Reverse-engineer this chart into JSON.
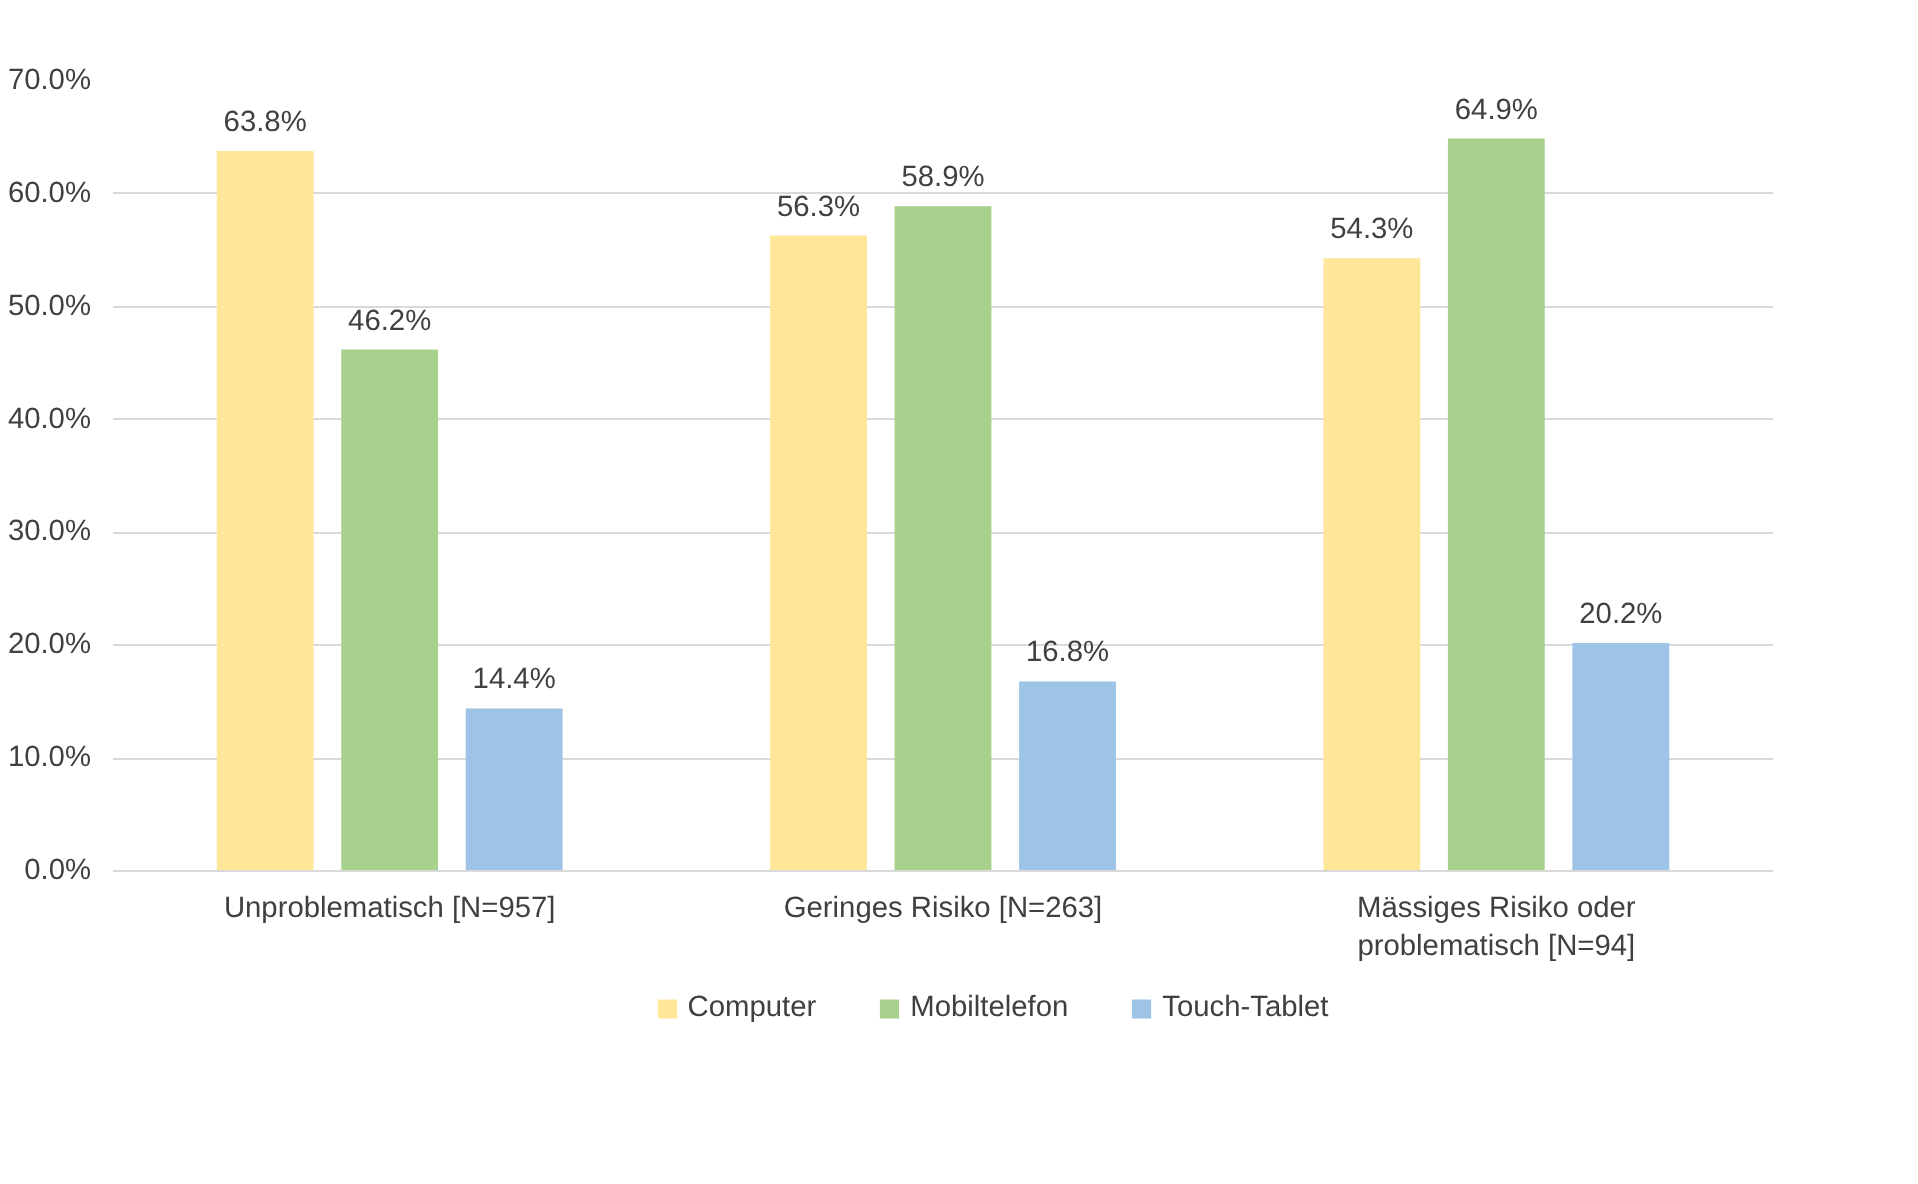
{
  "chart_data": {
    "type": "bar",
    "categories": [
      "Unproblematisch [N=957]",
      "Geringes Risiko [N=263]",
      "Mässiges Risiko oder problematisch [N=94]"
    ],
    "series": [
      {
        "name": "Computer",
        "color": "#ffe699",
        "values": [
          63.8,
          56.3,
          54.3
        ]
      },
      {
        "name": "Mobiltelefon",
        "color": "#a9d18e",
        "values": [
          46.2,
          58.9,
          64.9
        ]
      },
      {
        "name": "Touch-Tablet",
        "color": "#9dc3e6",
        "values": [
          14.4,
          16.8,
          20.2
        ]
      }
    ],
    "ylim": [
      0,
      70
    ],
    "yticks": [
      {
        "value": 0,
        "label": "0.0%"
      },
      {
        "value": 10,
        "label": "10.0%"
      },
      {
        "value": 20,
        "label": "20.0%"
      },
      {
        "value": 30,
        "label": "30.0%"
      },
      {
        "value": 40,
        "label": "40.0%"
      },
      {
        "value": 50,
        "label": "50.0%"
      },
      {
        "value": 60,
        "label": "60.0%"
      },
      {
        "value": 70,
        "label": "70.0%"
      }
    ],
    "value_labels": [
      [
        "63.8%",
        "56.3%",
        "54.3%"
      ],
      [
        "46.2%",
        "58.9%",
        "64.9%"
      ],
      [
        "14.4%",
        "16.8%",
        "20.2%"
      ]
    ],
    "grid": "y",
    "legend": "bottom"
  }
}
